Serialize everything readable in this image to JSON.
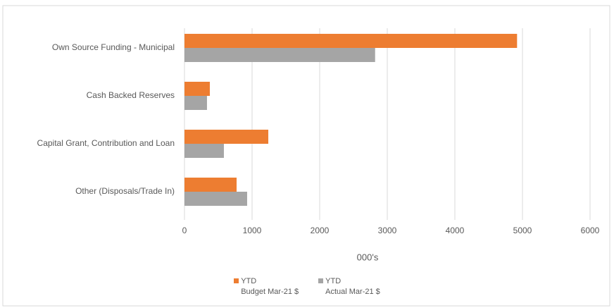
{
  "chart_data": {
    "type": "barh",
    "categories": [
      "Own Source Funding - Municipal",
      "Cash Backed Reserves",
      "Capital Grant, Contribution and Loan",
      "Other (Disposals/Trade In)"
    ],
    "series": [
      {
        "name": "YTD\nBudget Mar-21 $",
        "color": "#ed7d31",
        "values": [
          4920,
          375,
          1240,
          771
        ]
      },
      {
        "name": "YTD\nActual Mar-21 $",
        "color": "#a5a5a5",
        "values": [
          2820,
          333,
          583,
          927
        ]
      }
    ],
    "xlabel": "000's",
    "xlim": [
      0,
      6000
    ],
    "xticks": [
      0,
      1000,
      2000,
      3000,
      4000,
      5000,
      6000
    ],
    "grid": true,
    "legend": "bottom"
  }
}
